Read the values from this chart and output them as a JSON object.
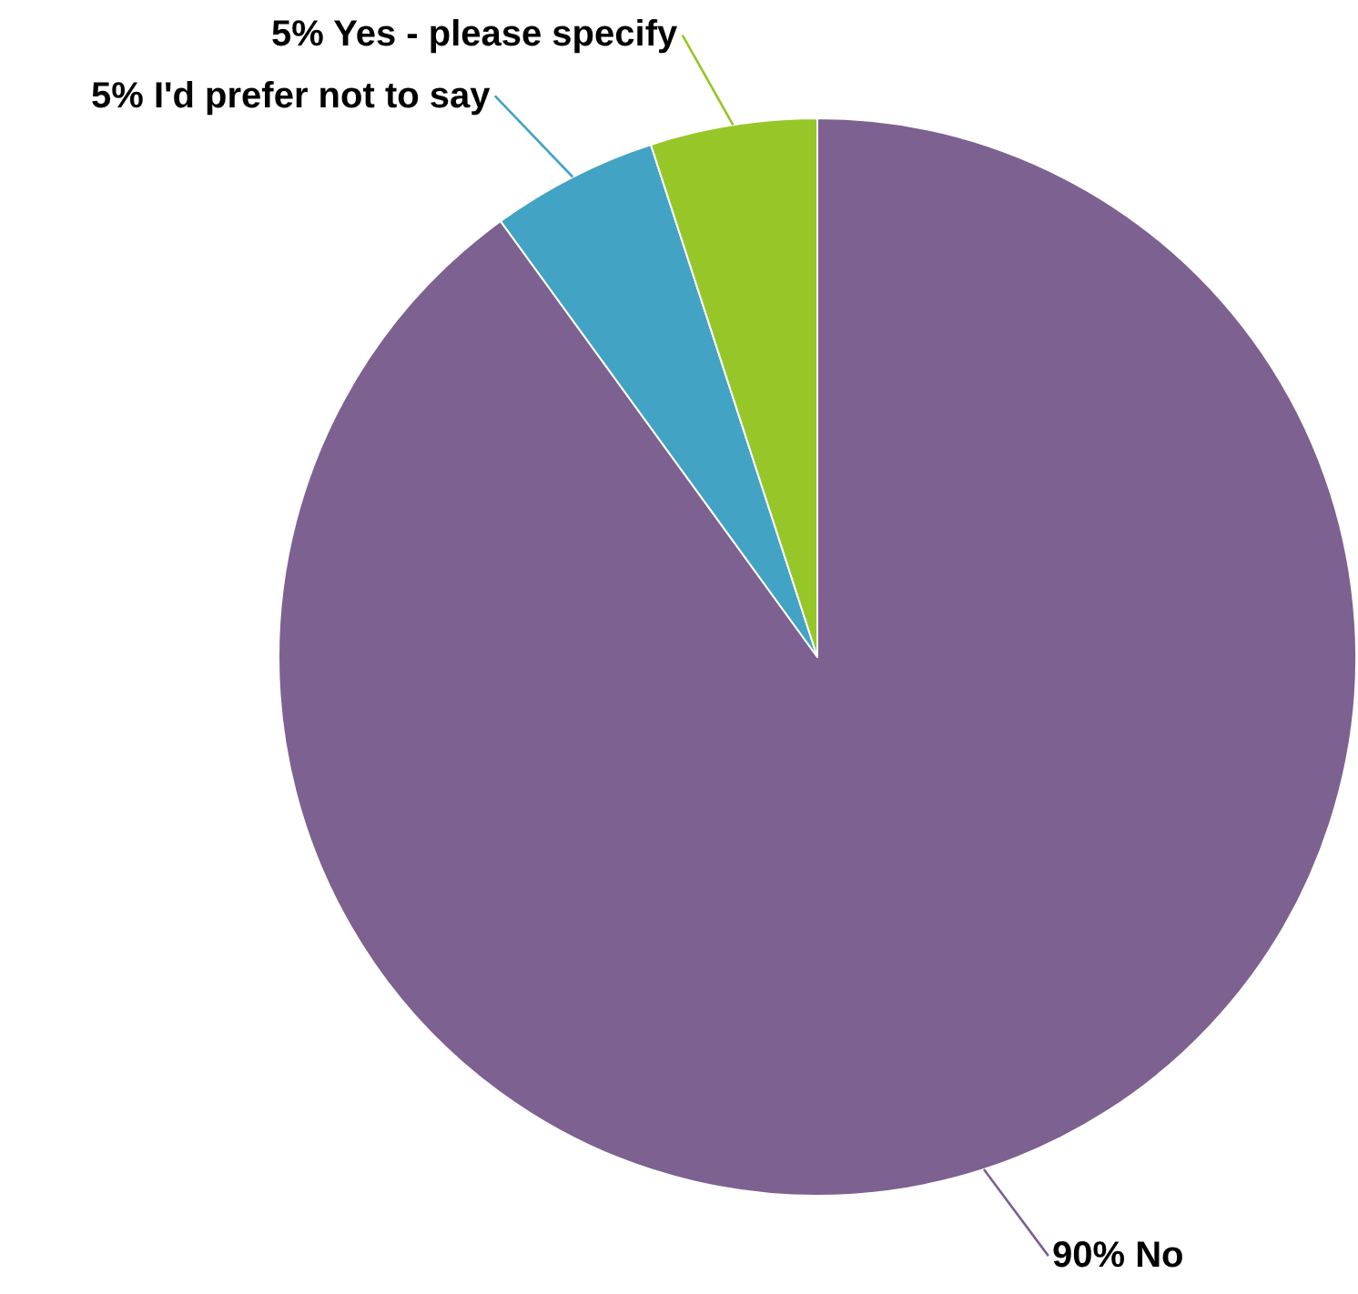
{
  "chart_data": {
    "type": "pie",
    "categories": [
      "No",
      "I'd prefer not to say",
      "Yes - please specify"
    ],
    "values": [
      90,
      5,
      5
    ],
    "colors": [
      "#7d6190",
      "#42a3c4",
      "#96c628"
    ],
    "value_labels": [
      "90%",
      "5%",
      "5%"
    ],
    "legend": false
  }
}
